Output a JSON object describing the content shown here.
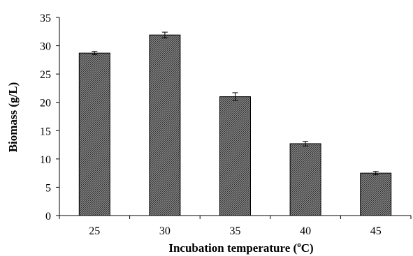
{
  "chart_data": {
    "type": "bar",
    "categories": [
      "25",
      "30",
      "35",
      "40",
      "45"
    ],
    "values": [
      28.7,
      31.9,
      21.0,
      12.7,
      7.5
    ],
    "errors": [
      0.3,
      0.5,
      0.7,
      0.4,
      0.3
    ],
    "xlabel": "Incubation  temperature (",
    "xlabel_unit_sup": "o",
    "xlabel_unit": "C)",
    "ylabel": "Biomass (g/L)",
    "ylim": [
      0,
      35
    ],
    "yticks": [
      0,
      5,
      10,
      15,
      20,
      25,
      30,
      35
    ],
    "ytick_labels": [
      "0",
      "5",
      "10",
      "15",
      "20",
      "25",
      "30",
      "35"
    ],
    "grid": false,
    "bar_pattern": "diagonal-hatch",
    "bar_color": "#555555"
  }
}
